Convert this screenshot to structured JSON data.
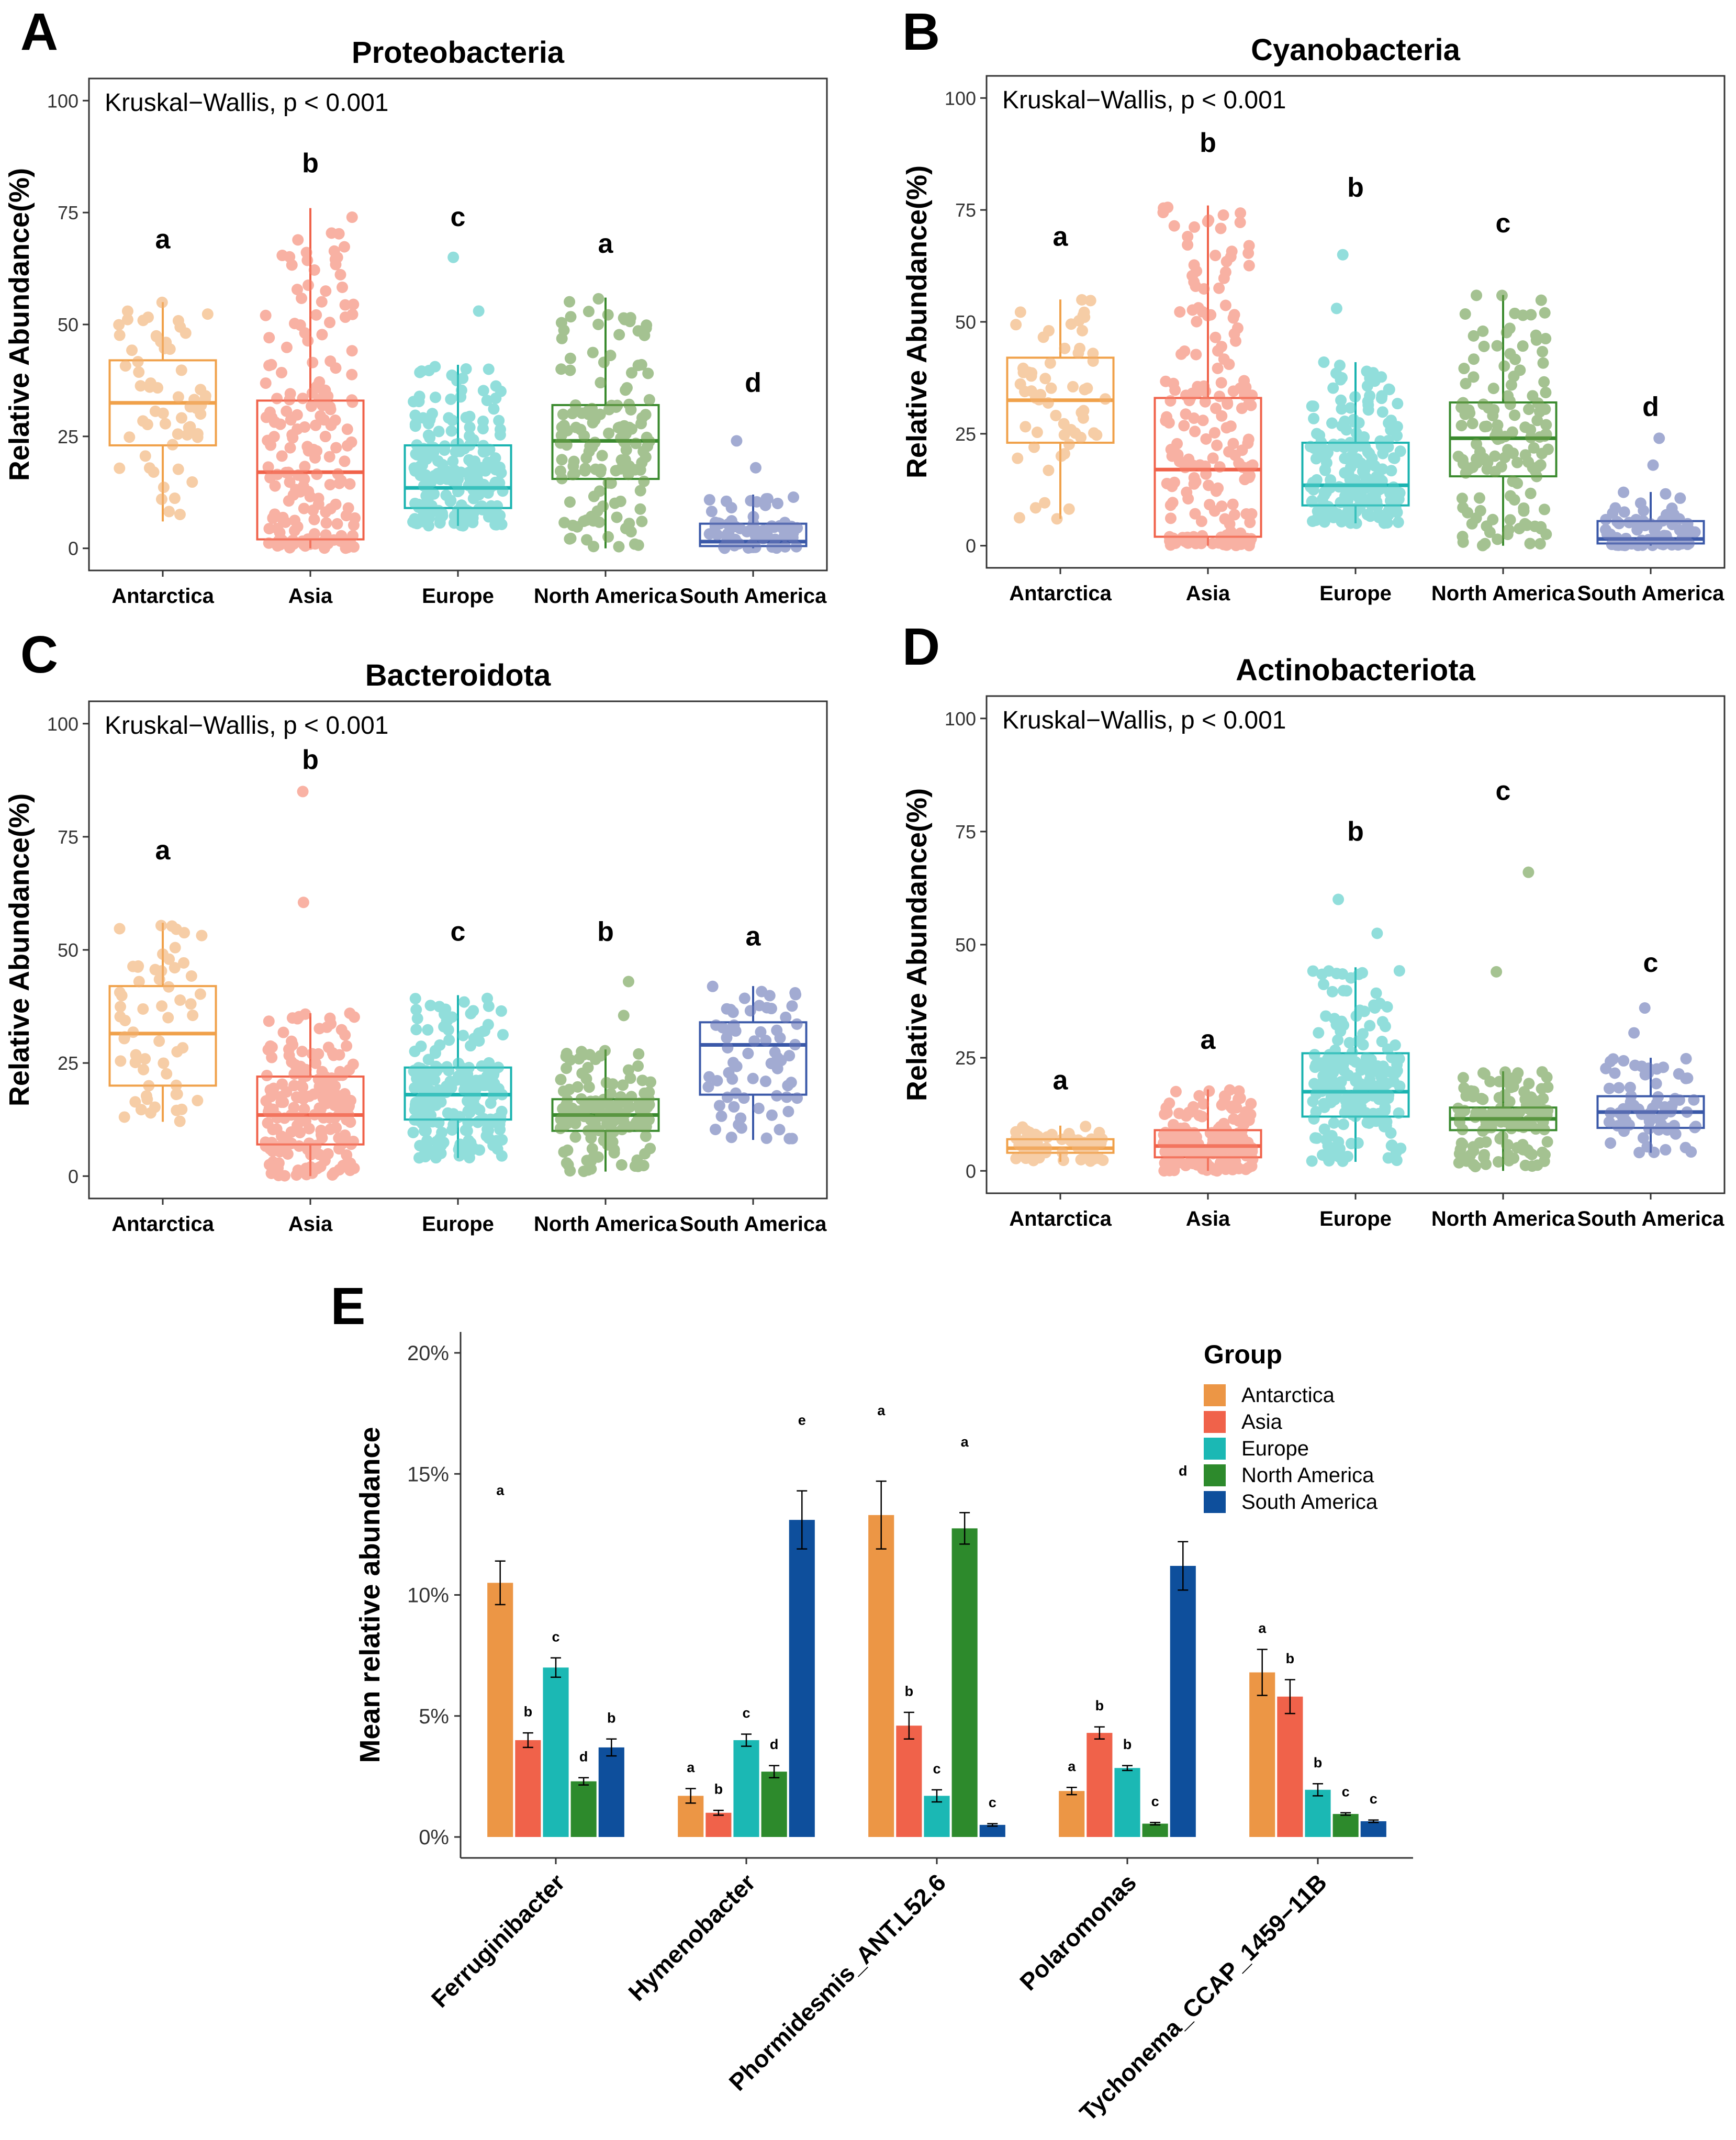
{
  "colors": {
    "Antarctica": "#ec9645",
    "Asia": "#f0624a",
    "Europe": "#1bb8b4",
    "North America": "#2d8a2c",
    "South America": "#0e4f9c"
  },
  "box_colors": {
    "Antarctica": "#f0a14a",
    "Asia": "#f0624a",
    "Europe": "#1ab3b0",
    "North America": "#3a8a2e",
    "South America": "#3a58a8"
  },
  "point_colors": {
    "Antarctica": "#f2b070",
    "Asia": "#f5826c",
    "Europe": "#4fcac6",
    "North America": "#6e9e4e",
    "South America": "#6a78b8"
  },
  "chart_data": [
    {
      "panel": "A",
      "type": "box",
      "title": "Proteobacteria",
      "annotation": "Kruskal−Wallis, p < 0.001",
      "ylabel": "Relative Abundance(%)",
      "ylim": [
        0,
        100
      ],
      "yticks": [
        "0",
        "25",
        "50",
        "75",
        "100"
      ],
      "categories": [
        "Antarctica",
        "Asia",
        "Europe",
        "North America",
        "South America"
      ],
      "boxes": [
        {
          "min": 6,
          "q1": 23,
          "median": 32.5,
          "q3": 42,
          "max": 55,
          "n": 60,
          "letter": "a",
          "letter_y": 67
        },
        {
          "min": 0,
          "q1": 2,
          "median": 17,
          "q3": 33,
          "max": 76,
          "n": 190,
          "letter": "b",
          "letter_y": 84
        },
        {
          "min": 5,
          "q1": 9,
          "median": 13.5,
          "q3": 23,
          "max": 41,
          "n": 200,
          "max_outlier": 65,
          "letter": "c",
          "letter_y": 72
        },
        {
          "min": 0,
          "q1": 15.5,
          "median": 24,
          "q3": 32,
          "max": 56,
          "n": 140,
          "letter": "a",
          "letter_y": 66
        },
        {
          "min": 0,
          "q1": 0.5,
          "median": 1.5,
          "q3": 5.5,
          "max": 12,
          "n": 70,
          "max_outlier": 24,
          "letter": "d",
          "letter_y": 35
        }
      ]
    },
    {
      "panel": "B",
      "type": "box",
      "title": "Cyanobacteria",
      "annotation": "Kruskal−Wallis, p < 0.001",
      "ylabel": "Relative Abundance(%)",
      "ylim": [
        0,
        100
      ],
      "yticks": [
        "0",
        "25",
        "50",
        "75",
        "100"
      ],
      "categories": [
        "Antarctica",
        "Asia",
        "Europe",
        "North America",
        "South America"
      ],
      "boxes": [
        {
          "min": 6,
          "q1": 23,
          "median": 32.5,
          "q3": 42,
          "max": 55,
          "n": 60,
          "letter": "a",
          "letter_y": 67
        },
        {
          "min": 0,
          "q1": 2,
          "median": 17,
          "q3": 33,
          "max": 76,
          "n": 190,
          "letter": "b",
          "letter_y": 88
        },
        {
          "min": 5,
          "q1": 9,
          "median": 13.5,
          "q3": 23,
          "max": 41,
          "n": 200,
          "max_outlier": 65,
          "letter": "b",
          "letter_y": 78
        },
        {
          "min": 0,
          "q1": 15.5,
          "median": 24,
          "q3": 32,
          "max": 56,
          "n": 140,
          "letter": "c",
          "letter_y": 70
        },
        {
          "min": 0,
          "q1": 0.5,
          "median": 1.5,
          "q3": 5.5,
          "max": 12,
          "n": 70,
          "max_outlier": 24,
          "letter": "d",
          "letter_y": 29
        }
      ]
    },
    {
      "panel": "C",
      "type": "box",
      "title": "Bacteroidota",
      "annotation": "Kruskal−Wallis, p < 0.001",
      "ylabel": "Relative Abundance(%)",
      "ylim": [
        0,
        100
      ],
      "yticks": [
        "0",
        "25",
        "50",
        "75",
        "100"
      ],
      "categories": [
        "Antarctica",
        "Asia",
        "Europe",
        "North America",
        "South America"
      ],
      "boxes": [
        {
          "min": 12,
          "q1": 20,
          "median": 31.5,
          "q3": 42,
          "max": 56,
          "n": 60,
          "letter": "a",
          "letter_y": 70
        },
        {
          "min": 0,
          "q1": 7,
          "median": 13.5,
          "q3": 22,
          "max": 36,
          "n": 190,
          "max_outlier": 85,
          "letter": "b",
          "letter_y": 90
        },
        {
          "min": 4,
          "q1": 12.5,
          "median": 18,
          "q3": 24,
          "max": 40,
          "n": 200,
          "letter": "c",
          "letter_y": 52
        },
        {
          "min": 1,
          "q1": 10,
          "median": 13.5,
          "q3": 17,
          "max": 28,
          "n": 140,
          "max_outlier": 43,
          "letter": "b",
          "letter_y": 52
        },
        {
          "min": 8,
          "q1": 18,
          "median": 29,
          "q3": 34,
          "max": 42,
          "n": 70,
          "letter": "a",
          "letter_y": 51
        }
      ]
    },
    {
      "panel": "D",
      "type": "box",
      "title": "Actinobacteriota",
      "annotation": "Kruskal−Wallis, p < 0.001",
      "ylabel": "Relative Abundance(%)",
      "ylim": [
        0,
        100
      ],
      "yticks": [
        "0",
        "25",
        "50",
        "75",
        "100"
      ],
      "categories": [
        "Antarctica",
        "Asia",
        "Europe",
        "North America",
        "South America"
      ],
      "boxes": [
        {
          "min": 2,
          "q1": 4,
          "median": 5,
          "q3": 7,
          "max": 10,
          "n": 60,
          "letter": "a",
          "letter_y": 18
        },
        {
          "min": 0,
          "q1": 3,
          "median": 5.5,
          "q3": 9,
          "max": 18,
          "n": 190,
          "letter": "a",
          "letter_y": 27
        },
        {
          "min": 2,
          "q1": 12,
          "median": 17.5,
          "q3": 26,
          "max": 45,
          "n": 200,
          "max_outlier": 60,
          "letter": "b",
          "letter_y": 73
        },
        {
          "min": 0,
          "q1": 9,
          "median": 11.5,
          "q3": 14,
          "max": 22,
          "n": 140,
          "max_outlier": 66,
          "letter": "c",
          "letter_y": 82
        },
        {
          "min": 4,
          "q1": 9.5,
          "median": 13,
          "q3": 16.5,
          "max": 25,
          "n": 70,
          "max_outlier": 36,
          "letter": "c",
          "letter_y": 44
        }
      ]
    },
    {
      "panel": "E",
      "type": "bar",
      "ylabel": "Mean relative abundance",
      "ylim": [
        0,
        20
      ],
      "yticks": [
        "0%",
        "5%",
        "10%",
        "15%",
        "20%"
      ],
      "categories": [
        "Ferruginibacter",
        "Hymenobacter",
        "Phormidesmis_ANT.L52.6",
        "Polaromonas",
        "Tychonema_CCAP_1459−11B"
      ],
      "legend_title": "Group",
      "legend_position": "top-right",
      "series": [
        {
          "name": "Antarctica",
          "values": [
            10.5,
            1.7,
            13.3,
            1.9,
            6.8
          ],
          "errors": [
            0.9,
            0.3,
            1.4,
            0.15,
            0.95
          ],
          "letters": [
            "a",
            "a",
            "a",
            "a",
            "a"
          ]
        },
        {
          "name": "Asia",
          "values": [
            4.0,
            1.0,
            4.6,
            4.3,
            5.8
          ],
          "errors": [
            0.3,
            0.1,
            0.55,
            0.25,
            0.7
          ],
          "letters": [
            "b",
            "b",
            "b",
            "b",
            "b"
          ]
        },
        {
          "name": "Europe",
          "values": [
            7.0,
            4.0,
            1.7,
            2.85,
            1.95
          ],
          "errors": [
            0.4,
            0.25,
            0.25,
            0.1,
            0.25
          ],
          "letters": [
            "c",
            "c",
            "c",
            "b",
            "b"
          ]
        },
        {
          "name": "North America",
          "values": [
            2.3,
            2.7,
            12.75,
            0.55,
            0.95
          ],
          "errors": [
            0.15,
            0.25,
            0.65,
            0.05,
            0.05
          ],
          "letters": [
            "d",
            "d",
            "a",
            "c",
            "c"
          ]
        },
        {
          "name": "South America",
          "values": [
            3.7,
            13.1,
            0.5,
            11.2,
            0.65
          ],
          "errors": [
            0.35,
            1.2,
            0.05,
            1.0,
            0.05
          ],
          "letters": [
            "b",
            "e",
            "c",
            "d",
            "c"
          ]
        }
      ]
    }
  ]
}
